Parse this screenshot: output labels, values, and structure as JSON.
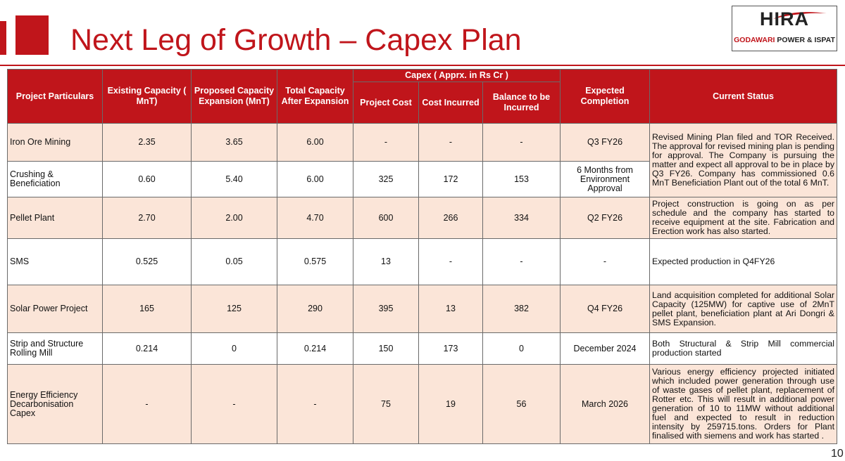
{
  "title": "Next Leg of Growth – Capex Plan",
  "logo": {
    "brand": "HIRA",
    "sub_red": "GODAWARI",
    "sub_dark": "POWER & ISPAT"
  },
  "page_number": "10",
  "table": {
    "group_header": "Capex ( Apprx. in Rs Cr )",
    "headers": {
      "particulars": "Project Particulars",
      "existing": "Existing Capacity ( MnT)",
      "proposed": "Proposed Capacity Expansion (MnT)",
      "total": "Total Capacity After Expansion",
      "project_cost": "Project Cost",
      "cost_incurred": "Cost Incurred",
      "balance": "Balance to be Incurred",
      "completion": "Expected Completion",
      "status": "Current Status"
    },
    "rows": [
      {
        "particulars": "Iron Ore Mining",
        "existing": "2.35",
        "proposed": "3.65",
        "total": "6.00",
        "project_cost": "-",
        "cost_incurred": "-",
        "balance": "-",
        "completion": "Q3 FY26"
      },
      {
        "particulars": "Crushing & Beneficiation",
        "existing": "0.60",
        "proposed": "5.40",
        "total": "6.00",
        "project_cost": "325",
        "cost_incurred": "172",
        "balance": "153",
        "completion": "6 Months from Environment Approval"
      },
      {
        "particulars": "Pellet Plant",
        "existing": "2.70",
        "proposed": "2.00",
        "total": "4.70",
        "project_cost": "600",
        "cost_incurred": "266",
        "balance": "334",
        "completion": "Q2 FY26",
        "status": "Project construction is going on as per schedule and the company has started to receive equipment at the site. Fabrication and Erection work has also started."
      },
      {
        "particulars": "SMS",
        "existing": "0.525",
        "proposed": "0.05",
        "total": "0.575",
        "project_cost": "13",
        "cost_incurred": "-",
        "balance": "-",
        "completion": "-",
        "status": "Expected production in Q4FY26"
      },
      {
        "particulars": "Solar Power Project",
        "existing": "165",
        "proposed": "125",
        "total": "290",
        "project_cost": "395",
        "cost_incurred": "13",
        "balance": "382",
        "completion": "Q4 FY26",
        "status": "Land acquisition completed for additional Solar Capacity (125MW) for captive use of 2MnT pellet plant, beneficiation plant at Ari Dongri & SMS Expansion."
      },
      {
        "particulars": "Strip and Structure Rolling Mill",
        "existing": "0.214",
        "proposed": "0",
        "total": "0.214",
        "project_cost": "150",
        "cost_incurred": "173",
        "balance": "0",
        "completion": "December 2024",
        "status": "Both Structural & Strip Mill commercial production started"
      },
      {
        "particulars": "Energy Efficiency Decarbonisation Capex",
        "existing": "-",
        "proposed": "-",
        "total": "-",
        "project_cost": "75",
        "cost_incurred": "19",
        "balance": "56",
        "completion": "March 2026",
        "status": "Various energy efficiency projected initiated which included power generation through use of waste gases of pellet plant, replacement of Rotter etc. This will result in additional power generation of 10 to 11MW without additional fuel and expected to result in reduction intensity by 259715.tons. Orders for Plant finalised with siemens and work has started ."
      }
    ],
    "merged_status_mining_crushing": "Revised Mining Plan filed and TOR Received. The approval for revised mining plan is pending for approval. The Company is pursuing the matter and expect all approval to be in place by Q3 FY26. Company has commissioned 0.6 MnT Beneficiation Plant out of the total 6 MnT."
  }
}
